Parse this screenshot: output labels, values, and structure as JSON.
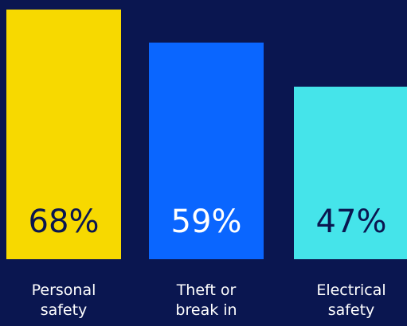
{
  "background": "#0a1650",
  "chart_data": {
    "type": "bar",
    "categories": [
      [
        "Personal",
        "safety"
      ],
      [
        "Theft or",
        "break in"
      ],
      [
        "Electrical",
        "safety"
      ]
    ],
    "values": [
      68,
      59,
      47
    ],
    "value_labels": [
      "68%",
      "59%",
      "47%"
    ],
    "colors": [
      "#f7d900",
      "#0a66ff",
      "#45e4ea"
    ],
    "value_label_colors": [
      "#0a1650",
      "#ffffff",
      "#0a1650"
    ],
    "ylim": [
      0,
      68
    ],
    "grid": false,
    "title": "",
    "xlabel": "",
    "ylabel": ""
  }
}
